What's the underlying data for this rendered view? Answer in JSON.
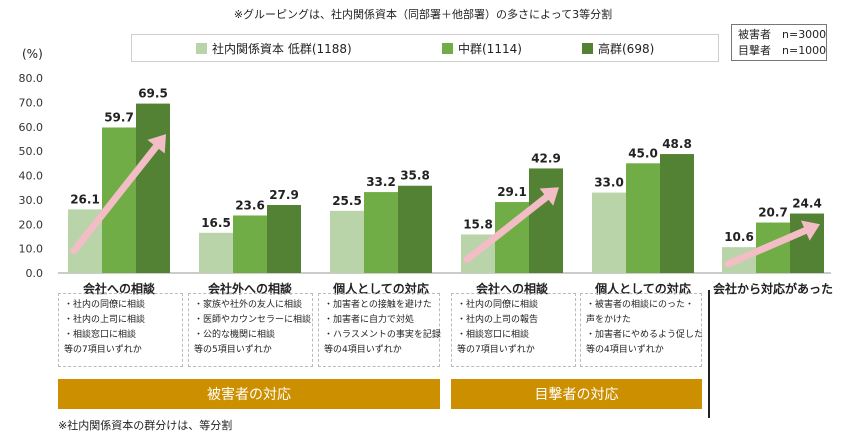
{
  "header": {
    "note": "※グルーピングは、社内関係資本（同部署＋他部署）の多さによって3等分割",
    "sample_victims": "被害者　n=3000",
    "sample_witnesses": "目撃者　n=1000"
  },
  "footer": {
    "note": "※社内関係資本の群分けは、等分割"
  },
  "colors": {
    "low": "#b8d4a8",
    "mid": "#70ad47",
    "high": "#548235",
    "arrow": "#f2bdc4",
    "banner": "#cc8f00"
  },
  "chart_data": {
    "type": "bar",
    "ylabel": "(%)",
    "ylim": [
      0,
      80
    ],
    "yticks": [
      "0.0",
      "10.0",
      "20.0",
      "30.0",
      "40.0",
      "50.0",
      "60.0",
      "70.0",
      "80.0"
    ],
    "categories": [
      "会社への相談",
      "会社外への相談",
      "個人としての対応",
      "会社への相談",
      "個人としての対応",
      "会社から対応があった"
    ],
    "series": [
      {
        "name": "社内関係資本  低群(1188)",
        "values": [
          26.1,
          16.5,
          25.5,
          15.8,
          33.0,
          10.6
        ]
      },
      {
        "name": "中群(1114)",
        "values": [
          59.7,
          23.6,
          33.2,
          29.1,
          45.0,
          20.7
        ]
      },
      {
        "name": "高群(698)",
        "values": [
          69.5,
          27.9,
          35.8,
          42.9,
          48.8,
          24.4
        ]
      }
    ],
    "value_labels": [
      [
        "26.1",
        "59.7",
        "69.5"
      ],
      [
        "16.5",
        "23.6",
        "27.9"
      ],
      [
        "25.5",
        "33.2",
        "35.8"
      ],
      [
        "15.8",
        "29.1",
        "42.9"
      ],
      [
        "33.0",
        "45.0",
        "48.8"
      ],
      [
        "10.6",
        "20.7",
        "24.4"
      ]
    ],
    "arrows": [
      0,
      3,
      5
    ]
  },
  "sub_items": [
    [
      "・社内の同僚に相談",
      "・社内の上司に相談",
      "・相談窓口に相談",
      "等の7項目いずれか"
    ],
    [
      "・家族や社外の友人に相談",
      "・医師やカウンセラーに相談",
      "・公的な機関に相談",
      "等の5項目いずれか"
    ],
    [
      "・加害者との接触を避けた",
      "・加害者に自力で対処",
      "・ハラスメントの事実を記録",
      "等の4項目いずれか"
    ],
    [
      "・社内の同僚に相談",
      "・社内の上司の報告",
      "・相談窓口に相談",
      "等の7項目いずれか"
    ],
    [
      "・被害者の相談にのった・",
      "  声をかけた",
      "・加害者にやめるよう促した",
      "等の4項目いずれか"
    ]
  ],
  "banners": {
    "victim": "被害者の対応",
    "witness": "目撃者の対応"
  }
}
